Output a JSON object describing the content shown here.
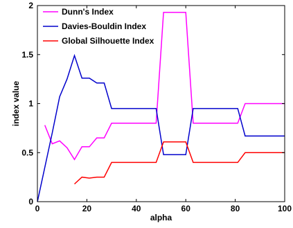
{
  "chart_data": {
    "type": "line",
    "title": "",
    "xlabel": "alpha",
    "ylabel": "index value",
    "xlim": [
      0,
      100
    ],
    "ylim": [
      0,
      2
    ],
    "xticks": [
      0,
      20,
      40,
      60,
      80,
      100
    ],
    "yticks": [
      0,
      0.5,
      1,
      1.5,
      2
    ],
    "ytick_labels": [
      "0",
      "0.5",
      "1",
      "1.5",
      "2"
    ],
    "grid": false,
    "legend_position": "top-left",
    "series": [
      {
        "name": "Dunn's Index",
        "color": "#ff00ff",
        "x": [
          3,
          6,
          9,
          12,
          15,
          18,
          21,
          24,
          27,
          30,
          48,
          51,
          60,
          63,
          81,
          84,
          100
        ],
        "y": [
          0.78,
          0.59,
          0.62,
          0.55,
          0.43,
          0.56,
          0.56,
          0.65,
          0.65,
          0.8,
          0.8,
          1.93,
          1.93,
          0.8,
          0.8,
          1.0,
          1.0
        ]
      },
      {
        "name": "Davies-Bouldin Index",
        "color": "#0000cc",
        "x": [
          0,
          3,
          6,
          9,
          12,
          15,
          18,
          21,
          24,
          27,
          30,
          48,
          51,
          60,
          63,
          81,
          84,
          100
        ],
        "y": [
          0,
          0.35,
          0.7,
          1.07,
          1.25,
          1.49,
          1.26,
          1.26,
          1.21,
          1.21,
          0.95,
          0.95,
          0.48,
          0.48,
          0.95,
          0.95,
          0.67,
          0.67
        ]
      },
      {
        "name": "Global Silhouette Index",
        "color": "#ff0000",
        "x": [
          15,
          18,
          21,
          24,
          27,
          30,
          48,
          51,
          60,
          63,
          81,
          84,
          100
        ],
        "y": [
          0.18,
          0.25,
          0.24,
          0.25,
          0.25,
          0.4,
          0.4,
          0.61,
          0.61,
          0.4,
          0.4,
          0.5,
          0.5
        ]
      }
    ]
  }
}
